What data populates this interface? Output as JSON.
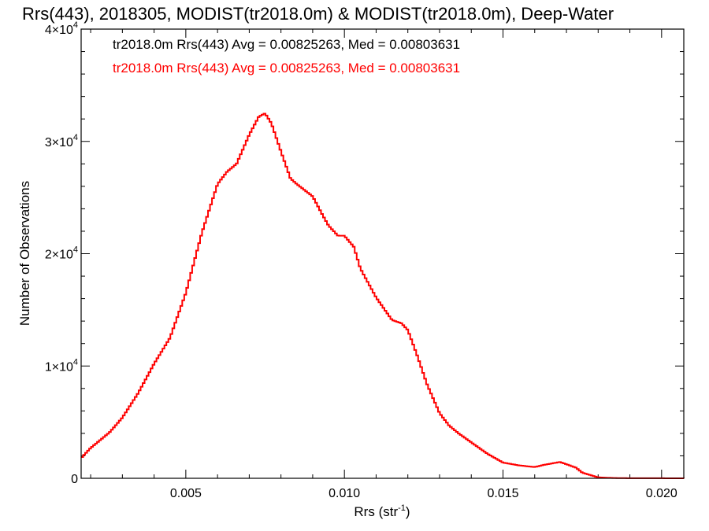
{
  "chart_data": {
    "type": "line",
    "title": "Rrs(443), 2018305, MODIST(tr2018.0m) & MODIST(tr2018.0m), Deep-Water",
    "xlabel_main": "Rrs (str",
    "xlabel_sup": "-1",
    "xlabel_end": ")",
    "ylabel": "Number of Observations",
    "xlim": [
      0.0017,
      0.0207
    ],
    "ylim": [
      0,
      40000
    ],
    "x_ticks": [
      {
        "value": 0.005,
        "label": "0.005"
      },
      {
        "value": 0.01,
        "label": "0.010"
      },
      {
        "value": 0.015,
        "label": "0.015"
      },
      {
        "value": 0.02,
        "label": "0.020"
      }
    ],
    "y_ticks": [
      {
        "value": 0,
        "base": "0",
        "exp": ""
      },
      {
        "value": 10000,
        "base": "1×10",
        "exp": "4"
      },
      {
        "value": 20000,
        "base": "2×10",
        "exp": "4"
      },
      {
        "value": 30000,
        "base": "3×10",
        "exp": "4"
      },
      {
        "value": 40000,
        "base": "4×10",
        "exp": "4"
      }
    ],
    "legend": [
      {
        "text": "tr2018.0m Rrs(443) Avg = 0.00825263, Med = 0.00803631",
        "color": "#000000"
      },
      {
        "text": "tr2018.0m Rrs(443) Avg = 0.00825263, Med = 0.00803631",
        "color": "#ff0000"
      }
    ],
    "series": [
      {
        "color": "#ff0000",
        "x": [
          0.0017,
          0.002,
          0.0023,
          0.0026,
          0.003,
          0.0035,
          0.004,
          0.0045,
          0.005,
          0.0055,
          0.006,
          0.0063,
          0.0066,
          0.007,
          0.0073,
          0.0075,
          0.0077,
          0.008,
          0.0083,
          0.0085,
          0.009,
          0.0093,
          0.0095,
          0.0098,
          0.01,
          0.0103,
          0.0105,
          0.011,
          0.0115,
          0.0118,
          0.012,
          0.0123,
          0.0126,
          0.013,
          0.0133,
          0.0136,
          0.014,
          0.0145,
          0.015,
          0.0155,
          0.016,
          0.0163,
          0.0165,
          0.0168,
          0.017,
          0.0173,
          0.0175,
          0.0178,
          0.018,
          0.0185,
          0.019,
          0.02,
          0.0207
        ],
        "values": [
          1800,
          2700,
          3400,
          4100,
          5400,
          7600,
          10200,
          12500,
          16500,
          21800,
          26200,
          27300,
          28000,
          30600,
          32200,
          32500,
          31600,
          29100,
          26700,
          26200,
          25100,
          23500,
          22500,
          21600,
          21600,
          20600,
          18700,
          16100,
          14100,
          13800,
          13200,
          10900,
          8400,
          5800,
          4700,
          4000,
          3200,
          2200,
          1400,
          1150,
          1000,
          1200,
          1300,
          1450,
          1250,
          950,
          500,
          250,
          80,
          25,
          10,
          5,
          0
        ]
      }
    ]
  }
}
